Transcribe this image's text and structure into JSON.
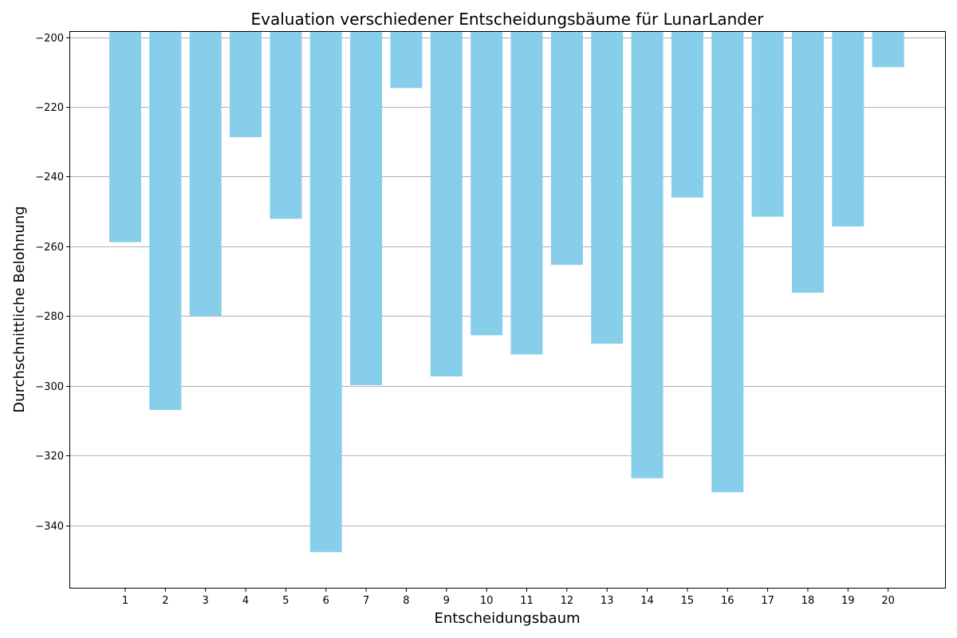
{
  "chart_data": {
    "type": "bar",
    "title": "Evaluation verschiedener Entscheidungsbäume für LunarLander",
    "xlabel": "Entscheidungsbaum",
    "ylabel": "Durchschnittliche Belohnung",
    "categories": [
      "1",
      "2",
      "3",
      "4",
      "5",
      "6",
      "7",
      "8",
      "9",
      "10",
      "11",
      "12",
      "13",
      "14",
      "15",
      "16",
      "17",
      "18",
      "19",
      "20"
    ],
    "values": [
      -258.8,
      -306.9,
      -280.0,
      -228.7,
      -252.1,
      -347.7,
      -299.8,
      -214.6,
      -297.3,
      -285.5,
      -291.0,
      -265.3,
      -287.9,
      -326.5,
      -246.0,
      -330.5,
      -251.5,
      -273.3,
      -254.3,
      -208.6
    ],
    "ylim": [
      -198.5,
      -357.9
    ],
    "yticks": [
      -200,
      -220,
      -240,
      -260,
      -280,
      -300,
      -320,
      -340
    ],
    "ytick_labels": [
      "−200",
      "−220",
      "−240",
      "−260",
      "−280",
      "−300",
      "−320",
      "−340"
    ],
    "grid": "y",
    "bar_color": "#87CEEB"
  }
}
